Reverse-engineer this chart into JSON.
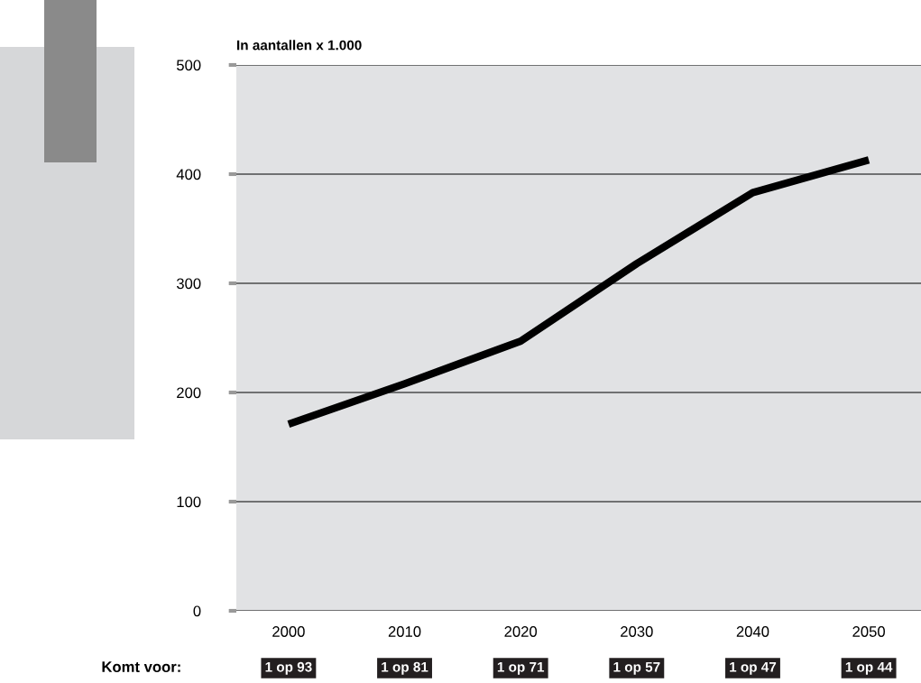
{
  "chart_data": {
    "type": "line",
    "title": "In aantallen x 1.000",
    "categories": [
      "2000",
      "2010",
      "2020",
      "2030",
      "2040",
      "2050"
    ],
    "series": [
      {
        "color": "#000000",
        "values": [
          171,
          208,
          247,
          318,
          383,
          413
        ]
      }
    ],
    "ylim": [
      0,
      500
    ],
    "yticks": [
      0,
      100,
      200,
      300,
      400,
      500
    ],
    "grid": "y",
    "marker": "none",
    "line_style": "solid",
    "annotations": [
      "Komt voor:",
      "1 op 93",
      "1 op 81",
      "1 op 71",
      "1 op 57",
      "1 op 47",
      "1 op 44"
    ]
  }
}
